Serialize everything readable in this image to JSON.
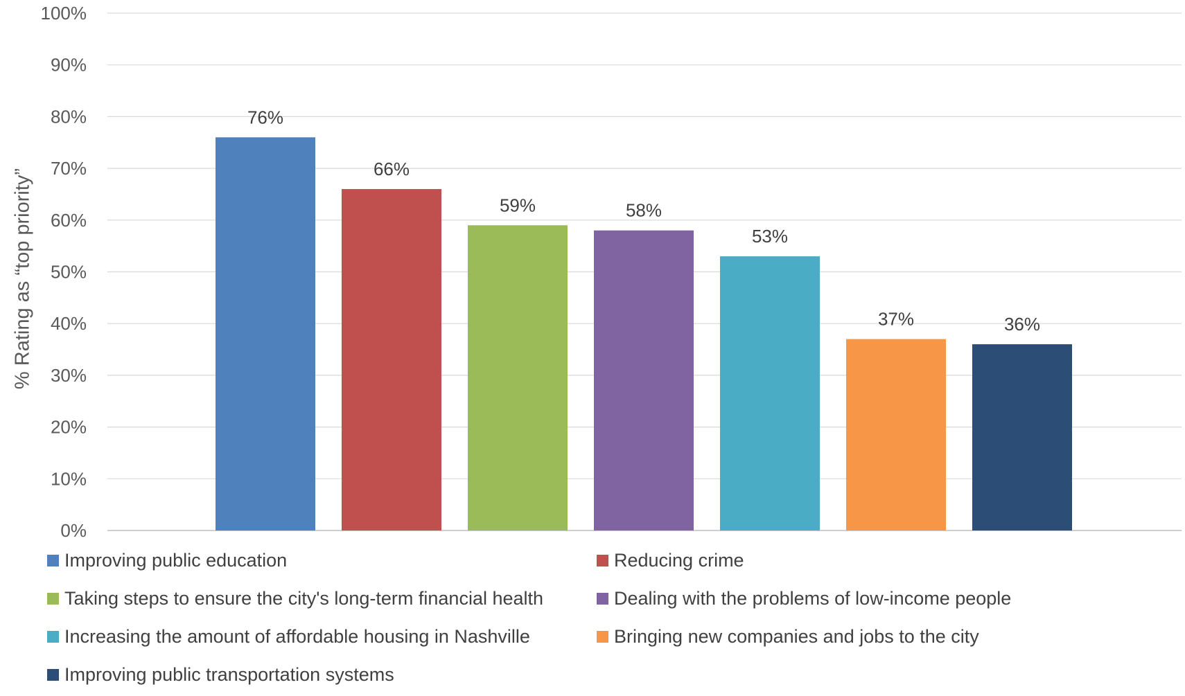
{
  "chart_data": {
    "type": "bar",
    "ylabel": "% Rating as “top priority”",
    "ylim": [
      0,
      100
    ],
    "yticks": [
      "0%",
      "10%",
      "20%",
      "30%",
      "40%",
      "50%",
      "60%",
      "70%",
      "80%",
      "90%",
      "100%"
    ],
    "grid": true,
    "legend_position": "bottom",
    "series": [
      {
        "name": "Improving public education",
        "value": 76,
        "label": "76%",
        "color": "#4F81BD"
      },
      {
        "name": "Reducing crime",
        "value": 66,
        "label": "66%",
        "color": "#C0504D"
      },
      {
        "name": "Taking steps to ensure the city's long-term financial health",
        "value": 59,
        "label": "59%",
        "color": "#9BBB59"
      },
      {
        "name": "Dealing with the problems of low-income people",
        "value": 58,
        "label": "58%",
        "color": "#8064A2"
      },
      {
        "name": "Increasing the amount of affordable housing in Nashville",
        "value": 53,
        "label": "53%",
        "color": "#4BACC6"
      },
      {
        "name": "Bringing new companies and jobs to the city",
        "value": 37,
        "label": "37%",
        "color": "#F79646"
      },
      {
        "name": "Improving public transportation systems",
        "value": 36,
        "label": "36%",
        "color": "#2C4D75"
      }
    ]
  }
}
